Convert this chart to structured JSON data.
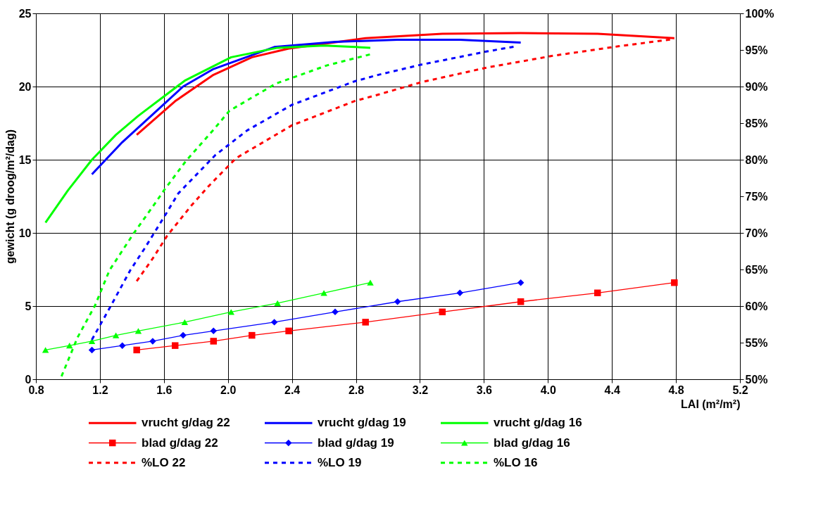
{
  "chart_data": {
    "type": "line",
    "xlabel": "LAI (m²/m²)",
    "ylabel": "gewicht (g droog/m²/dag)",
    "xlim": [
      0.8,
      5.2
    ],
    "xticks": [
      {
        "value": 0.8,
        "label": "0.8"
      },
      {
        "value": 1.2,
        "label": "1.2"
      },
      {
        "value": 1.6,
        "label": "1.6"
      },
      {
        "value": 2.0,
        "label": "2.0"
      },
      {
        "value": 2.4,
        "label": "2.4"
      },
      {
        "value": 2.8,
        "label": "2.8"
      },
      {
        "value": 3.2,
        "label": "3.2"
      },
      {
        "value": 3.6,
        "label": "3.6"
      },
      {
        "value": 4.0,
        "label": "4.0"
      },
      {
        "value": 4.4,
        "label": "4.4"
      },
      {
        "value": 4.8,
        "label": "4.8"
      },
      {
        "value": 5.2,
        "label": "5.2"
      }
    ],
    "ylim": [
      0,
      25
    ],
    "yticks": [
      0,
      5,
      10,
      15,
      20,
      25
    ],
    "y2lim": [
      50,
      100
    ],
    "y2ticks": [
      {
        "value": 50,
        "label": "50%"
      },
      {
        "value": 55,
        "label": "55%"
      },
      {
        "value": 60,
        "label": "60%"
      },
      {
        "value": 65,
        "label": "65%"
      },
      {
        "value": 70,
        "label": "70%"
      },
      {
        "value": 75,
        "label": "75%"
      },
      {
        "value": 80,
        "label": "80%"
      },
      {
        "value": 85,
        "label": "85%"
      },
      {
        "value": 90,
        "label": "90%"
      },
      {
        "value": 95,
        "label": "95%"
      },
      {
        "value": 100,
        "label": "100%"
      }
    ],
    "grid": true,
    "legend": "bottom",
    "series": [
      {
        "name": "vrucht g/dag 22",
        "color": "#ff0000",
        "marker": "none",
        "line_style": "solid",
        "x": [
          1.43,
          1.67,
          1.91,
          2.15,
          2.38,
          2.86,
          3.34,
          3.83,
          4.31,
          4.79
        ],
        "values": [
          16.7,
          19.0,
          20.8,
          22.0,
          22.6,
          23.3,
          23.6,
          23.65,
          23.6,
          23.3
        ]
      },
      {
        "name": "vrucht g/dag 19",
        "color": "#0000ff",
        "marker": "none",
        "line_style": "solid",
        "x": [
          1.15,
          1.34,
          1.53,
          1.72,
          1.91,
          2.29,
          2.67,
          3.06,
          3.45,
          3.83
        ],
        "values": [
          14.0,
          16.2,
          18.1,
          20.0,
          21.2,
          22.7,
          23.05,
          23.2,
          23.2,
          23.0
        ]
      },
      {
        "name": "vrucht g/dag 16",
        "color": "#00ff00",
        "marker": "none",
        "line_style": "solid",
        "x": [
          0.86,
          1.0,
          1.15,
          1.3,
          1.44,
          1.73,
          2.02,
          2.31,
          2.6,
          2.89
        ],
        "values": [
          10.7,
          12.9,
          15.0,
          16.7,
          18.0,
          20.4,
          22.0,
          22.65,
          22.8,
          22.65
        ]
      },
      {
        "name": "blad g/dag 22",
        "color": "#ff0000",
        "marker": "square",
        "line_style": "solid",
        "x": [
          1.43,
          1.67,
          1.91,
          2.15,
          2.38,
          2.86,
          3.34,
          3.83,
          4.31,
          4.79
        ],
        "values": [
          2.0,
          2.3,
          2.6,
          3.0,
          3.3,
          3.9,
          4.6,
          5.3,
          5.9,
          6.6
        ]
      },
      {
        "name": "blad g/dag 19",
        "color": "#0000ff",
        "marker": "diamond",
        "line_style": "solid",
        "x": [
          1.15,
          1.34,
          1.53,
          1.72,
          1.91,
          2.29,
          2.67,
          3.06,
          3.45,
          3.83
        ],
        "values": [
          2.0,
          2.3,
          2.6,
          3.0,
          3.3,
          3.9,
          4.6,
          5.3,
          5.9,
          6.6
        ]
      },
      {
        "name": "blad g/dag 16",
        "color": "#00ff00",
        "marker": "triangle",
        "line_style": "solid",
        "x": [
          0.86,
          1.01,
          1.15,
          1.3,
          1.44,
          1.73,
          2.02,
          2.31,
          2.6,
          2.89
        ],
        "values": [
          2.0,
          2.3,
          2.6,
          3.0,
          3.3,
          3.9,
          4.6,
          5.2,
          5.9,
          6.6
        ]
      },
      {
        "name": "%LO 22",
        "color": "#ff0000",
        "marker": "none",
        "line_style": "dashed",
        "axis": "y2",
        "x": [
          1.43,
          1.53,
          1.62,
          1.77,
          1.88,
          2.05,
          2.4,
          2.79,
          2.94,
          3.21,
          3.62,
          4.03,
          4.44,
          4.79
        ],
        "values": [
          63.4,
          66.5,
          69.6,
          73.7,
          76.4,
          80.2,
          84.7,
          88.0,
          88.9,
          90.6,
          92.6,
          94.2,
          95.5,
          96.5
        ]
      },
      {
        "name": "%LO 19",
        "color": "#0000ff",
        "marker": "none",
        "line_style": "dashed",
        "axis": "y2",
        "x": [
          1.15,
          1.27,
          1.39,
          1.48,
          1.61,
          1.69,
          1.92,
          2.12,
          2.4,
          2.79,
          2.94,
          3.21,
          3.62,
          3.8
        ],
        "values": [
          55.4,
          60.1,
          64.9,
          67.9,
          72.5,
          75.4,
          80.6,
          84.0,
          87.5,
          90.7,
          91.6,
          93.0,
          94.8,
          95.5
        ]
      },
      {
        "name": "%LO 16",
        "color": "#00ff00",
        "marker": "none",
        "line_style": "dashed",
        "axis": "y2",
        "x": [
          0.96,
          1.06,
          1.17,
          1.26,
          1.41,
          1.55,
          1.6,
          1.74,
          1.91,
          2.01,
          2.3,
          2.62,
          2.89
        ],
        "values": [
          50.4,
          55.7,
          60.1,
          64.9,
          69.9,
          74.2,
          75.8,
          79.9,
          84.1,
          86.7,
          90.4,
          92.9,
          94.4
        ]
      }
    ]
  }
}
